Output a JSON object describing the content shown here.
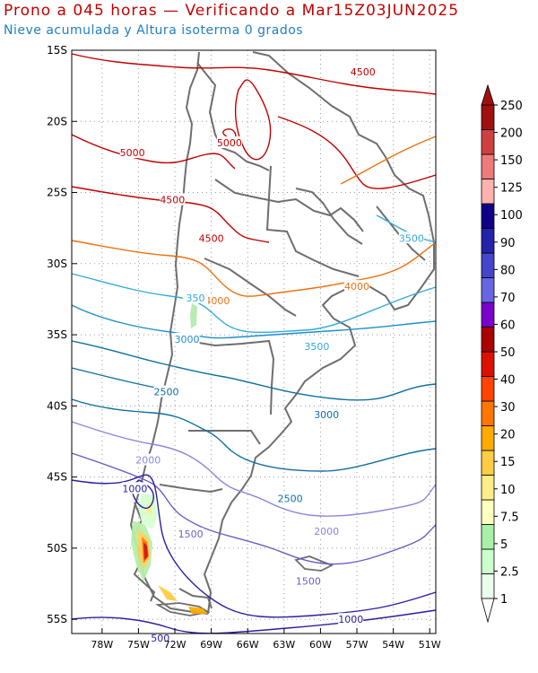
{
  "header": {
    "title": "Prono a 045 horas — Verificando a Mar15Z03JUN2025",
    "subtitle": "Nieve acumulada y Altura isoterma 0 grados"
  },
  "map": {
    "lat_labels": [
      "15S",
      "20S",
      "25S",
      "30S",
      "35S",
      "40S",
      "45S",
      "50S",
      "55S"
    ],
    "lon_labels": [
      "78W",
      "75W",
      "72W",
      "69W",
      "66W",
      "63W",
      "60W",
      "57W",
      "54W",
      "51W"
    ],
    "lat_range": [
      -56,
      -15
    ],
    "lon_range": [
      -80.5,
      -50.5
    ],
    "contour_labels": [
      {
        "text": "4500",
        "lat": -16.5,
        "lon": -56.5,
        "color": "#c00000"
      },
      {
        "text": "5000",
        "lat": -22.2,
        "lon": -75.5,
        "color": "#c00000"
      },
      {
        "text": "5000",
        "lat": -21.5,
        "lon": -67.5,
        "color": "#c00000"
      },
      {
        "text": "4500",
        "lat": -25.5,
        "lon": -72.2,
        "color": "#c00000"
      },
      {
        "text": "4500",
        "lat": -28.2,
        "lon": -69.0,
        "color": "#c00000"
      },
      {
        "text": "3500",
        "lat": -28.2,
        "lon": -52.5,
        "color": "#33aadd"
      },
      {
        "text": "4000",
        "lat": -31.6,
        "lon": -57.0,
        "color": "#f07010"
      },
      {
        "text": "4000",
        "lat": -32.6,
        "lon": -68.5,
        "color": "#f07010"
      },
      {
        "text": "350",
        "lat": -32.4,
        "lon": -70.3,
        "color": "#33aadd"
      },
      {
        "text": "3000",
        "lat": -35.3,
        "lon": -71.0,
        "color": "#1f90c8"
      },
      {
        "text": "3500",
        "lat": -35.8,
        "lon": -60.3,
        "color": "#33aadd"
      },
      {
        "text": "2500",
        "lat": -39.0,
        "lon": -72.7,
        "color": "#1070a0"
      },
      {
        "text": "3000",
        "lat": -40.6,
        "lon": -59.5,
        "color": "#1070a0"
      },
      {
        "text": "2000",
        "lat": -43.8,
        "lon": -74.2,
        "color": "#8a88dd"
      },
      {
        "text": "2500",
        "lat": -46.5,
        "lon": -62.5,
        "color": "#1070a0"
      },
      {
        "text": "1000",
        "lat": -45.8,
        "lon": -75.3,
        "color": "#2a20a0"
      },
      {
        "text": "1500",
        "lat": -49.0,
        "lon": -70.7,
        "color": "#6a60c8"
      },
      {
        "text": "2000",
        "lat": -48.8,
        "lon": -59.5,
        "color": "#8a88dd"
      },
      {
        "text": "1500",
        "lat": -52.3,
        "lon": -61.0,
        "color": "#6a60c8"
      },
      {
        "text": "1000",
        "lat": -55.0,
        "lon": -57.5,
        "color": "#2a20a0"
      },
      {
        "text": "500",
        "lat": -56.3,
        "lon": -73.2,
        "color": "#2a20a0"
      }
    ]
  },
  "legend": {
    "labels": [
      "1",
      "2.5",
      "5",
      "7.5",
      "10",
      "15",
      "20",
      "30",
      "40",
      "50",
      "60",
      "70",
      "80",
      "90",
      "100",
      "125",
      "150",
      "200",
      "250"
    ],
    "colors": [
      "#eaffea",
      "#ccffcc",
      "#a8f0a8",
      "#ffffc0",
      "#ffee88",
      "#ffcc44",
      "#ffaa00",
      "#ff7700",
      "#ff4400",
      "#dd1100",
      "#aa0000",
      "#7a00cc",
      "#6666e0",
      "#4444cc",
      "#2222aa",
      "#120088",
      "#ffb0b0",
      "#ee7a7a",
      "#d04040",
      "#a01010"
    ]
  }
}
